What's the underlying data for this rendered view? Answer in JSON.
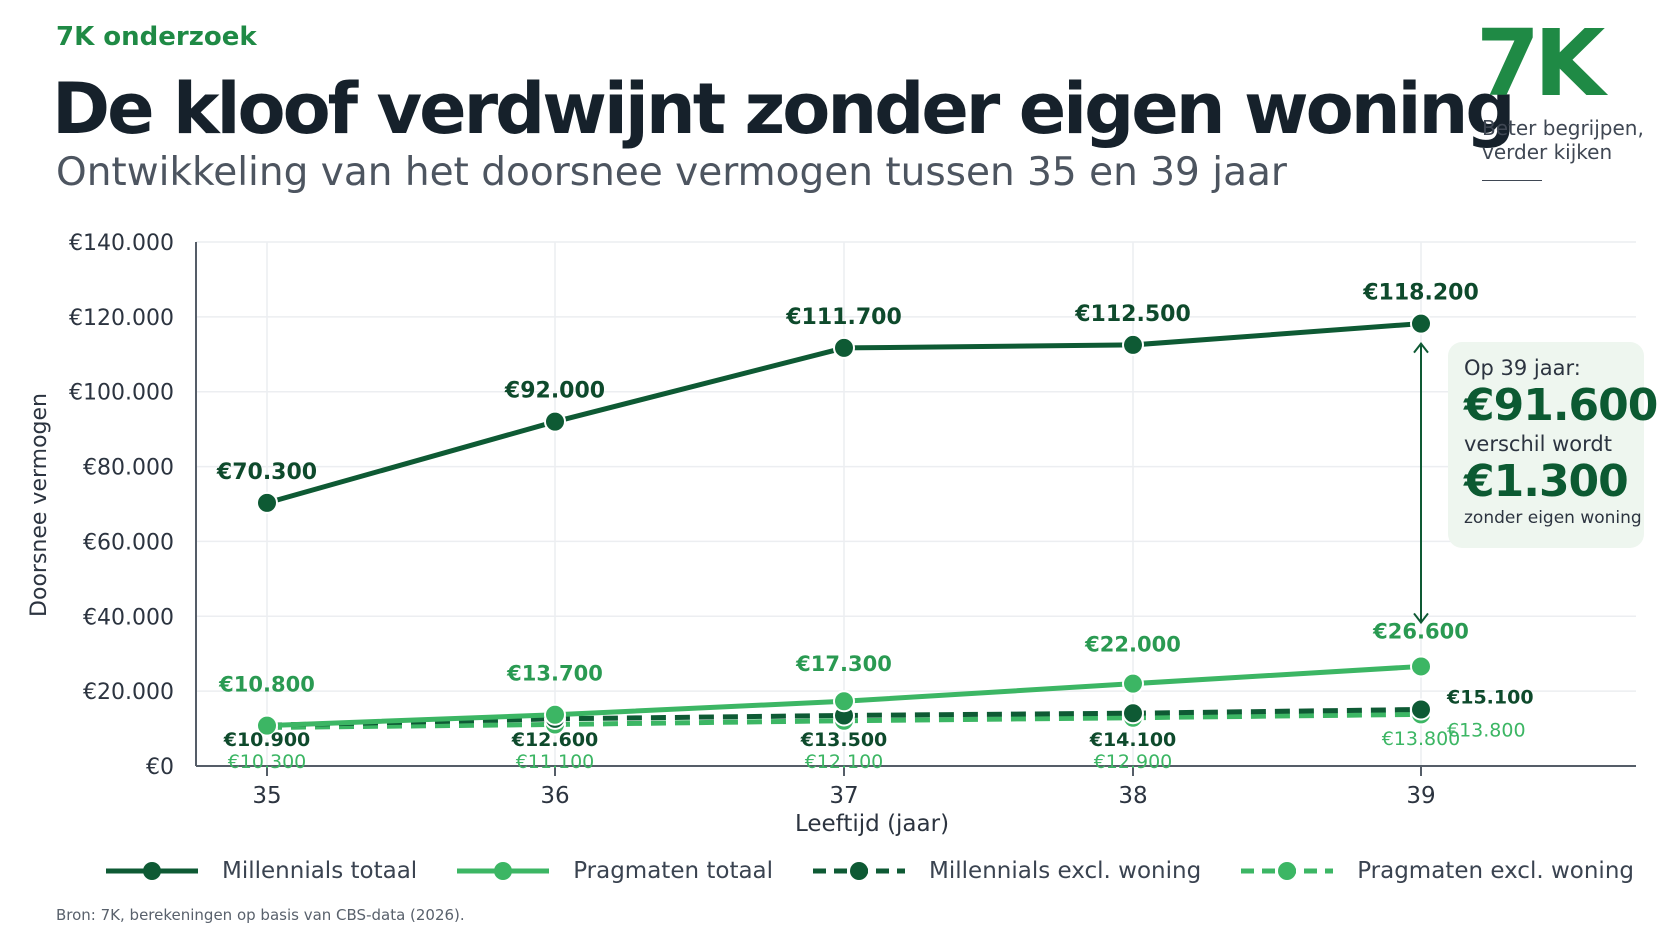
{
  "header": {
    "kicker": "7K onderzoek",
    "title": "De kloof verdwijnt zonder eigen woning",
    "subtitle": "Ontwikkeling van het doorsnee vermogen tussen 35 en 39 jaar"
  },
  "brand": {
    "logo_text": "7K",
    "tagline": "Beter begrijpen, verder kijken"
  },
  "callout": {
    "line1": "Op 39 jaar:",
    "value1": "€91.600",
    "line2": "verschil wordt",
    "value2": "€1.300",
    "line3": "zonder eigen woning"
  },
  "source": "Bron: 7K, berekeningen op basis van CBS-data (2026).",
  "colors": {
    "dark_green": "#0e5a34",
    "light_green": "#3cb664",
    "grid": "#eceef1",
    "axis": "#555d68",
    "text": "#2c3440"
  },
  "chart_data": {
    "type": "line",
    "xlabel": "Leeftijd (jaar)",
    "ylabel": "Doorsnee vermogen",
    "x": [
      35,
      36,
      37,
      38,
      39
    ],
    "ylim": [
      0,
      140000
    ],
    "y_ticks": [
      0,
      20000,
      40000,
      60000,
      80000,
      100000,
      120000,
      140000
    ],
    "y_tick_labels": [
      "€0",
      "€20.000",
      "€40.000",
      "€60.000",
      "€80.000",
      "€100.000",
      "€120.000",
      "€140.000"
    ],
    "grid": true,
    "legend_position": "bottom",
    "series": [
      {
        "name": "Millennials totaal",
        "color": "#0e5a34",
        "dashed": false,
        "values": [
          70300,
          92000,
          111700,
          112500,
          118200
        ],
        "labels": [
          "€70.300",
          "€92.000",
          "€111.700",
          "€112.500",
          "€118.200"
        ]
      },
      {
        "name": "Pragmaten totaal",
        "color": "#3cb664",
        "dashed": false,
        "values": [
          10800,
          13700,
          17300,
          22000,
          26600
        ],
        "labels": [
          "€10.800",
          "€13.700",
          "€17.300",
          "€22.000",
          "€26.600"
        ]
      },
      {
        "name": "Millennials excl. woning",
        "color": "#0e5a34",
        "dashed": true,
        "values": [
          10900,
          12600,
          13500,
          14100,
          15100
        ],
        "labels": [
          "€10.900",
          "€12.600",
          "€13.500",
          "€14.100",
          "€15.100"
        ]
      },
      {
        "name": "Pragmaten excl. woning",
        "color": "#3cb664",
        "dashed": true,
        "values": [
          10300,
          11100,
          12100,
          12900,
          13800
        ],
        "labels": [
          "€10.300",
          "€11.100",
          "€12.100",
          "€12.900",
          "€13.800"
        ],
        "extra_label": "€13.800"
      }
    ]
  }
}
